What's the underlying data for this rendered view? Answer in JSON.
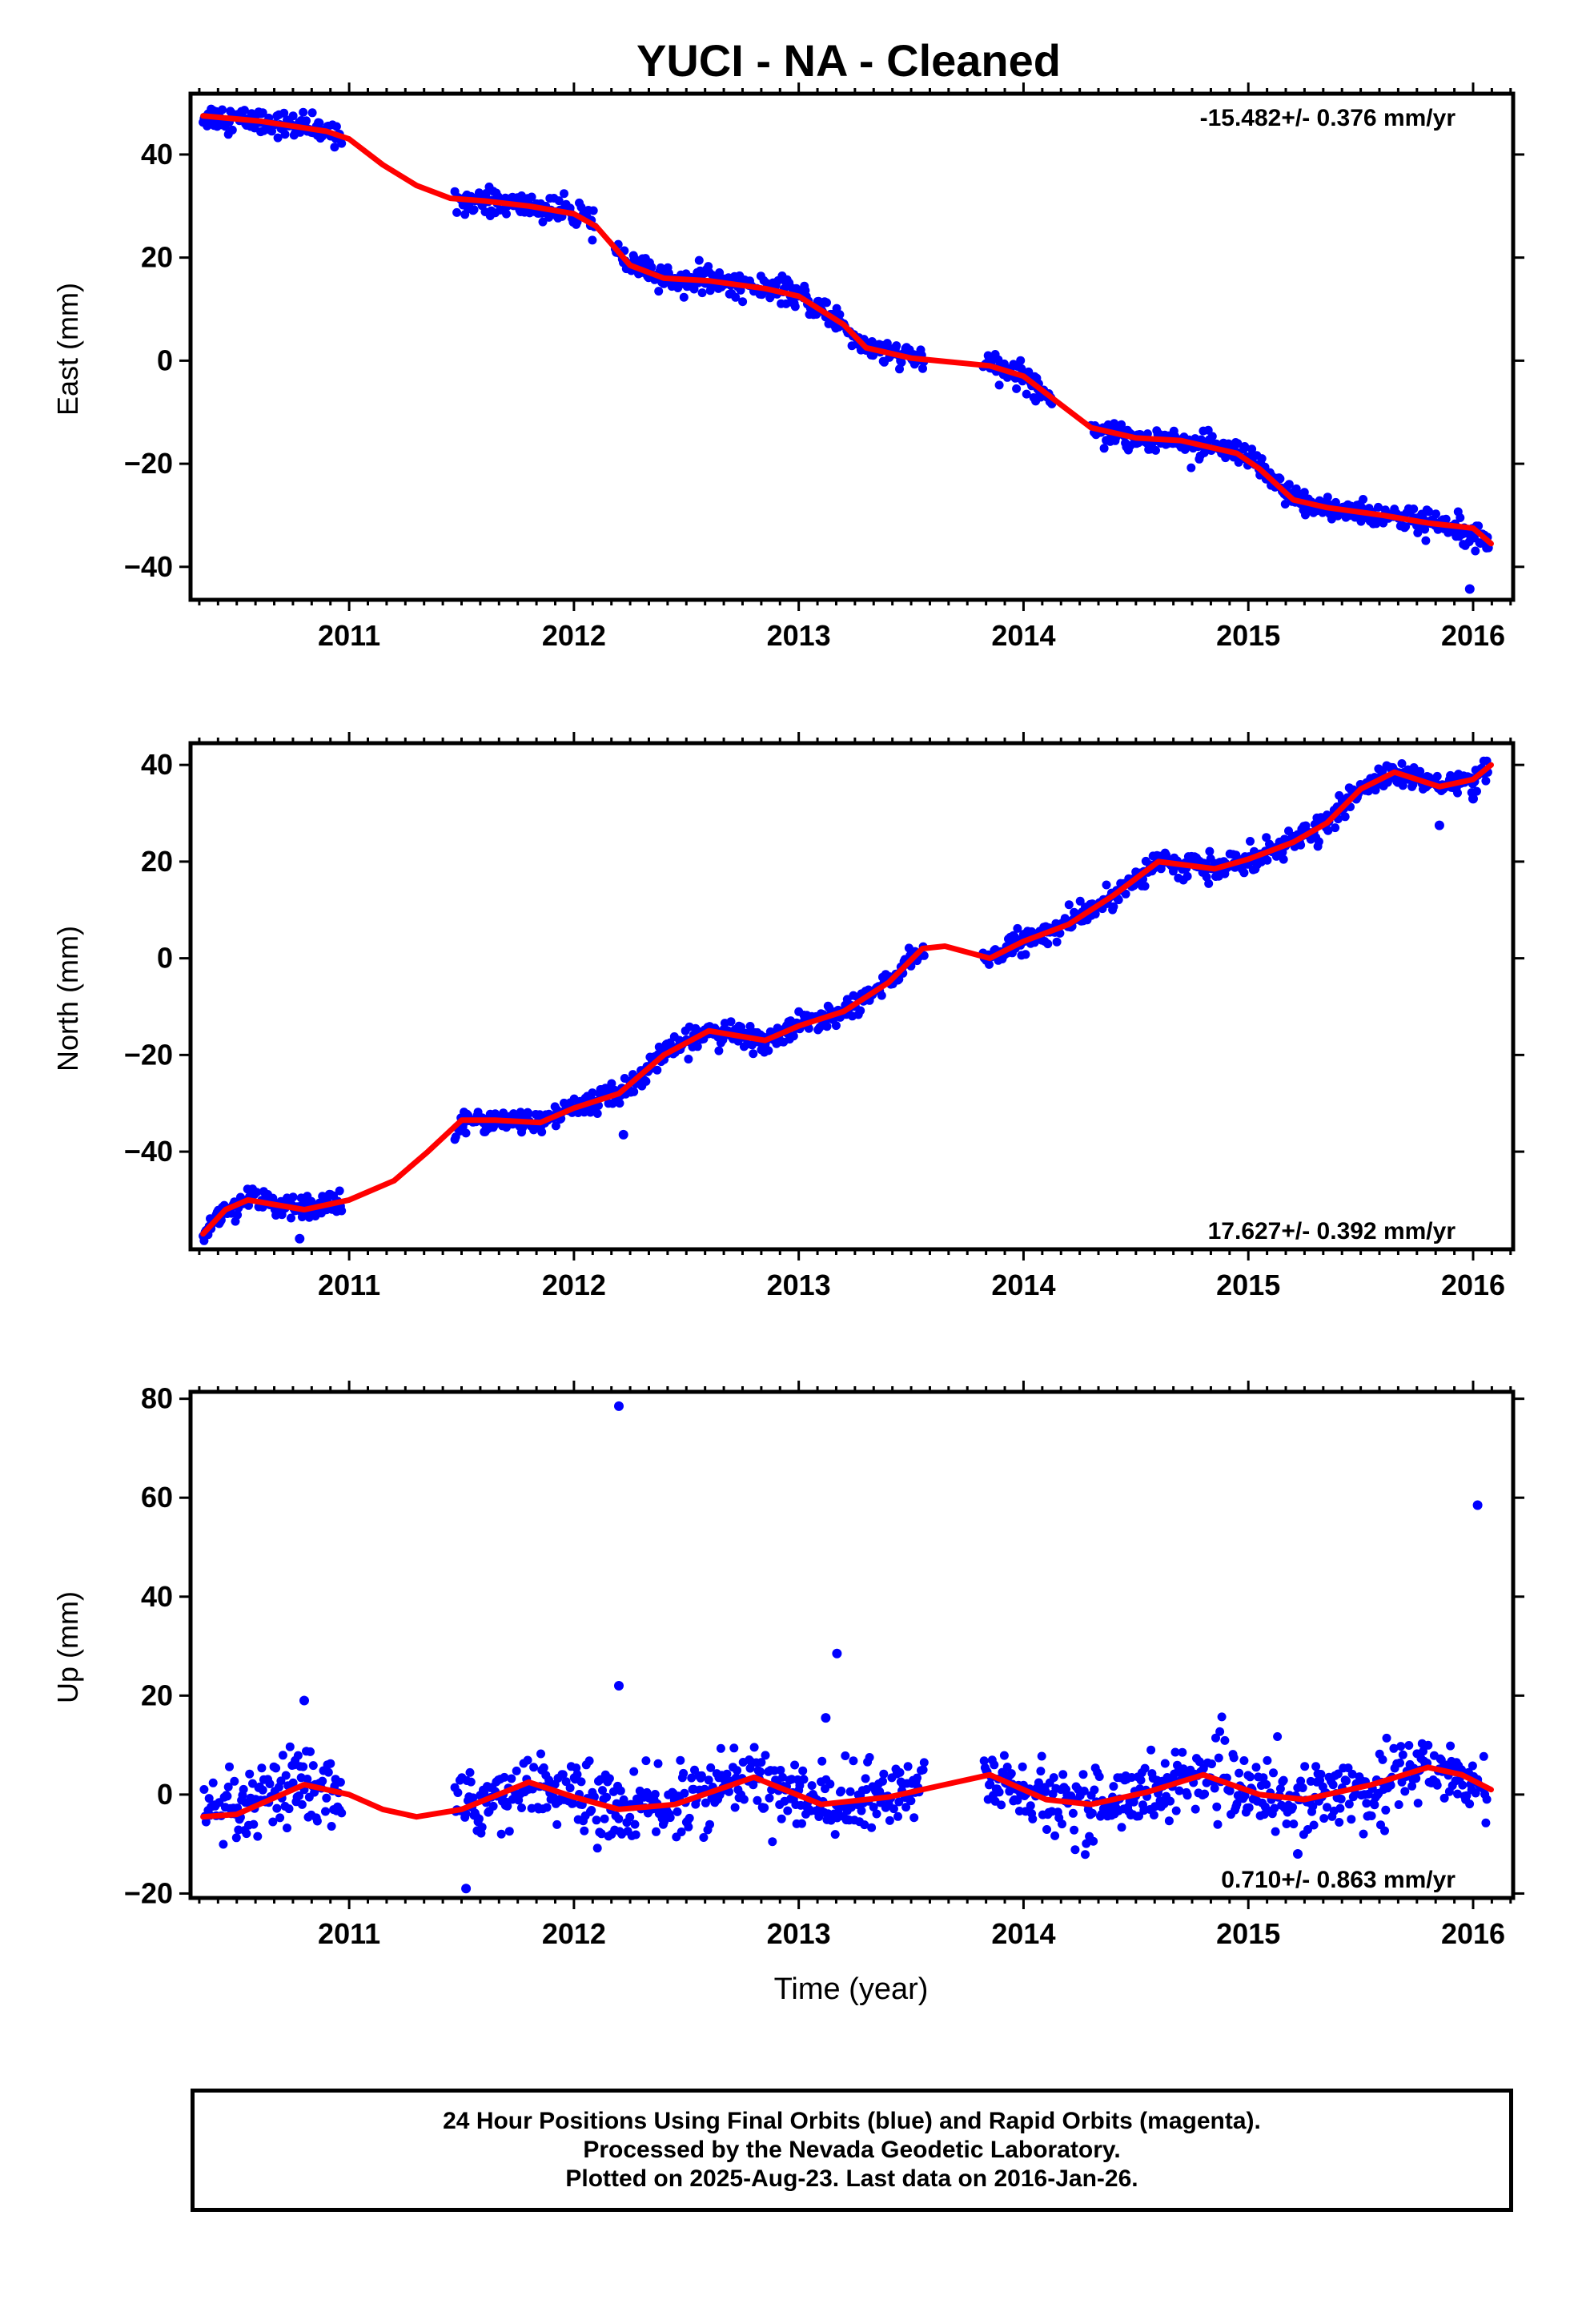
{
  "title": "YUCI  - NA - Cleaned",
  "xlabel": "Time (year)",
  "footer": {
    "line1": "24 Hour Positions Using Final Orbits (blue) and Rapid Orbits (magenta).",
    "line2": "Processed by the Nevada Geodetic Laboratory.",
    "line3": "Plotted on 2025-Aug-23. Last data on 2016-Jan-26."
  },
  "colors": {
    "points": "#0000ff",
    "fit": "#ff0000",
    "axes": "#000000"
  },
  "chart_data": [
    {
      "type": "scatter",
      "ylabel": "East (mm)",
      "rate": "-15.482+/- 0.376 mm/yr",
      "rate_position": "top-right",
      "xlim": [
        2010.2944,
        2016.1781
      ],
      "ylim": [
        -46.4,
        51.8
      ],
      "x_ticks": [
        "2011",
        "2012",
        "2013",
        "2014",
        "2015",
        "2016"
      ],
      "y_ticks": [
        "40",
        "20",
        "0",
        "−20",
        "−40"
      ],
      "y_tick_values": [
        40,
        20,
        0,
        -20,
        -40
      ],
      "data_segments": [
        [
          2010.35,
          2010.97
        ],
        [
          2011.47,
          2012.1
        ],
        [
          2012.17,
          2013.56
        ],
        [
          2013.82,
          2014.13
        ],
        [
          2014.3,
          2016.07
        ]
      ],
      "fit_curve": [
        [
          2010.35,
          47.5
        ],
        [
          2010.6,
          46.5
        ],
        [
          2010.9,
          44.5
        ],
        [
          2011.0,
          43
        ],
        [
          2011.15,
          38
        ],
        [
          2011.3,
          34
        ],
        [
          2011.45,
          31.5
        ],
        [
          2011.6,
          31
        ],
        [
          2011.8,
          30
        ],
        [
          2012.0,
          28.5
        ],
        [
          2012.1,
          26
        ],
        [
          2012.25,
          18.5
        ],
        [
          2012.4,
          16
        ],
        [
          2012.6,
          15.5
        ],
        [
          2012.85,
          14
        ],
        [
          2013.0,
          12.5
        ],
        [
          2013.2,
          7
        ],
        [
          2013.3,
          2.5
        ],
        [
          2013.5,
          0.5
        ],
        [
          2013.85,
          -1
        ],
        [
          2014.0,
          -3
        ],
        [
          2014.15,
          -8
        ],
        [
          2014.3,
          -13
        ],
        [
          2014.5,
          -15
        ],
        [
          2014.7,
          -15.5
        ],
        [
          2014.95,
          -18
        ],
        [
          2015.05,
          -21
        ],
        [
          2015.2,
          -27
        ],
        [
          2015.35,
          -28.5
        ],
        [
          2015.6,
          -30
        ],
        [
          2015.8,
          -31.5
        ],
        [
          2016.0,
          -32.5
        ],
        [
          2016.08,
          -35.5
        ]
      ],
      "outliers": [
        [
          2015.985,
          -44.3
        ]
      ]
    },
    {
      "type": "scatter",
      "ylabel": "North (mm)",
      "rate": "17.627+/- 0.392 mm/yr",
      "rate_position": "bottom-right",
      "xlim": [
        2010.2944,
        2016.1781
      ],
      "ylim": [
        -60.2,
        44.5
      ],
      "x_ticks": [
        "2011",
        "2012",
        "2013",
        "2014",
        "2015",
        "2016"
      ],
      "y_ticks": [
        "40",
        "20",
        "0",
        "−20",
        "−40"
      ],
      "y_tick_values": [
        40,
        20,
        0,
        -20,
        -40
      ],
      "data_segments": [
        [
          2010.35,
          2010.97
        ],
        [
          2011.47,
          2013.56
        ],
        [
          2013.82,
          2016.07
        ]
      ],
      "fit_curve": [
        [
          2010.35,
          -57
        ],
        [
          2010.45,
          -52
        ],
        [
          2010.55,
          -50
        ],
        [
          2010.8,
          -52
        ],
        [
          2011.0,
          -50
        ],
        [
          2011.2,
          -46
        ],
        [
          2011.35,
          -40
        ],
        [
          2011.5,
          -33.5
        ],
        [
          2011.65,
          -33.5
        ],
        [
          2011.85,
          -34
        ],
        [
          2012.0,
          -31
        ],
        [
          2012.2,
          -28
        ],
        [
          2012.4,
          -20
        ],
        [
          2012.6,
          -15
        ],
        [
          2012.85,
          -17
        ],
        [
          2013.0,
          -14
        ],
        [
          2013.2,
          -11
        ],
        [
          2013.4,
          -5
        ],
        [
          2013.55,
          2
        ],
        [
          2013.65,
          2.5
        ],
        [
          2013.85,
          0
        ],
        [
          2014.0,
          3.5
        ],
        [
          2014.2,
          7
        ],
        [
          2014.4,
          13
        ],
        [
          2014.6,
          20
        ],
        [
          2014.85,
          18.5
        ],
        [
          2015.0,
          20.5
        ],
        [
          2015.2,
          24
        ],
        [
          2015.35,
          28
        ],
        [
          2015.5,
          35
        ],
        [
          2015.65,
          38.5
        ],
        [
          2015.85,
          35.5
        ],
        [
          2016.0,
          37
        ],
        [
          2016.08,
          40
        ]
      ],
      "outliers": [
        [
          2012.22,
          -36.5
        ],
        [
          2015.85,
          27.5
        ],
        [
          2016.0,
          33
        ],
        [
          2010.78,
          -58
        ]
      ]
    },
    {
      "type": "scatter",
      "ylabel": "Up (mm)",
      "rate": "0.710+/- 0.863 mm/yr",
      "rate_position": "bottom-right",
      "xlim": [
        2010.2944,
        2016.1781
      ],
      "ylim": [
        -20.9,
        81.4
      ],
      "x_ticks": [
        "2011",
        "2012",
        "2013",
        "2014",
        "2015",
        "2016"
      ],
      "y_ticks": [
        "80",
        "60",
        "40",
        "20",
        "0",
        "−20"
      ],
      "y_tick_values": [
        80,
        60,
        40,
        20,
        0,
        -20
      ],
      "data_segments": [
        [
          2010.35,
          2010.97
        ],
        [
          2011.47,
          2013.56
        ],
        [
          2013.82,
          2016.07
        ]
      ],
      "fit_curve": [
        [
          2010.35,
          -4.5
        ],
        [
          2010.5,
          -4
        ],
        [
          2010.65,
          -1
        ],
        [
          2010.8,
          2
        ],
        [
          2011.0,
          0
        ],
        [
          2011.15,
          -3
        ],
        [
          2011.3,
          -4.5
        ],
        [
          2011.5,
          -3
        ],
        [
          2011.8,
          2.5
        ],
        [
          2012.0,
          -0.5
        ],
        [
          2012.2,
          -3
        ],
        [
          2012.45,
          -2
        ],
        [
          2012.8,
          3.5
        ],
        [
          2013.1,
          -2
        ],
        [
          2013.4,
          -0.5
        ],
        [
          2013.65,
          2
        ],
        [
          2013.85,
          4
        ],
        [
          2014.1,
          -1
        ],
        [
          2014.3,
          -2
        ],
        [
          2014.55,
          0.5
        ],
        [
          2014.8,
          4
        ],
        [
          2015.05,
          0
        ],
        [
          2015.25,
          -1
        ],
        [
          2015.55,
          2
        ],
        [
          2015.8,
          5.5
        ],
        [
          2015.95,
          4
        ],
        [
          2016.08,
          1
        ]
      ],
      "outliers": [
        [
          2012.2,
          78.5
        ],
        [
          2016.02,
          58.5
        ],
        [
          2013.17,
          28.5
        ],
        [
          2012.2,
          22
        ],
        [
          2013.12,
          15.5
        ],
        [
          2011.52,
          -19
        ],
        [
          2010.8,
          19
        ],
        [
          2015.22,
          -12
        ]
      ]
    }
  ]
}
